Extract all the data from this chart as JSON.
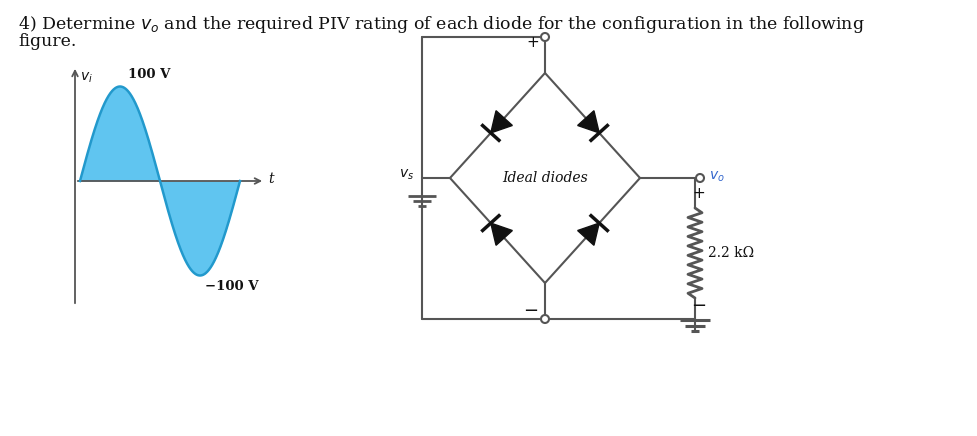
{
  "background_color": "#ffffff",
  "sine_color": "#44bbee",
  "sine_line_color": "#2299cc",
  "label_100V": "100 V",
  "label_neg100V": "−100 V",
  "label_vi": "$v_i$",
  "label_t": "t",
  "label_vs": "$v_s$",
  "label_vo": "$v_o$",
  "label_ideal": "Ideal diodes",
  "label_R": "2.2 kΩ",
  "line_color": "#555555",
  "diode_color": "#111111",
  "text_color": "#111111",
  "title_line1": "4) Determine $v_o$ and the required PIV rating of each diode for the configuration in the following",
  "title_line2": "figure.",
  "title_fontsize": 12.5
}
